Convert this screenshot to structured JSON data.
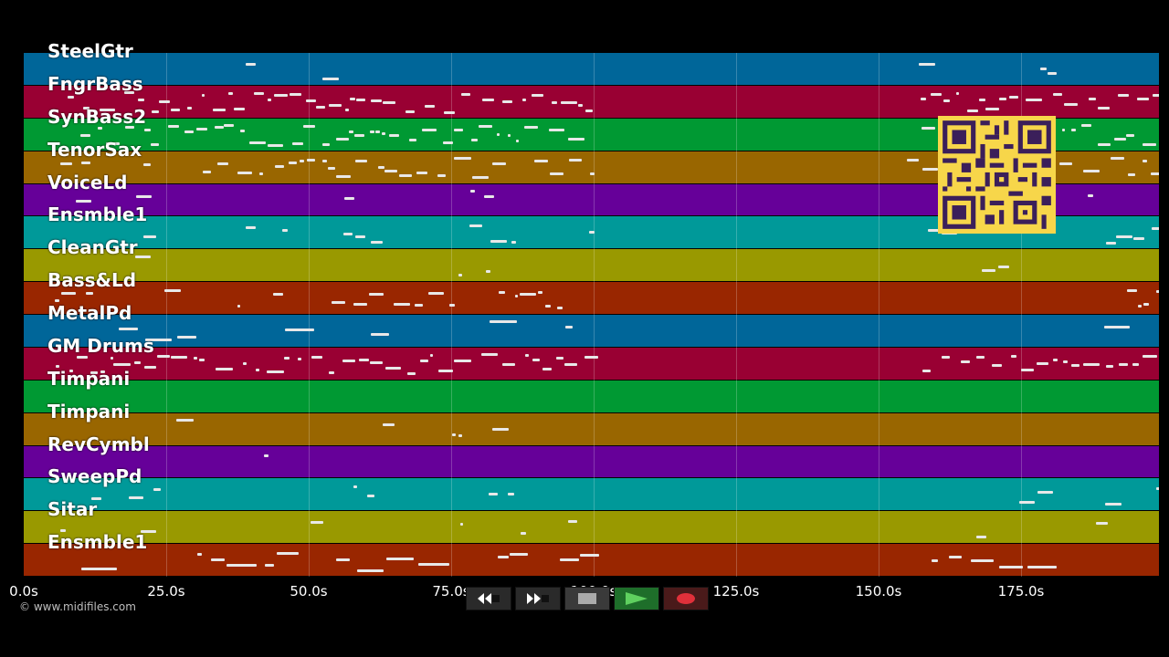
{
  "tracks": [
    {
      "label": "SteelGtr",
      "color": "#006699"
    },
    {
      "label": "FngrBass",
      "color": "#990033"
    },
    {
      "label": "SynBass2",
      "color": "#009933"
    },
    {
      "label": "TenorSax",
      "color": "#996600"
    },
    {
      "label": "VoiceLd",
      "color": "#660099"
    },
    {
      "label": "Ensmble1",
      "color": "#009999"
    },
    {
      "label": "CleanGtr",
      "color": "#999900"
    },
    {
      "label": "Bass&Ld",
      "color": "#992600"
    },
    {
      "label": "MetalPd",
      "color": "#006699"
    },
    {
      "label": "GM Drums",
      "color": "#990033"
    },
    {
      "label": "Timpani",
      "color": "#009933"
    },
    {
      "label": "Timpani",
      "color": "#996600"
    },
    {
      "label": "RevCymbl",
      "color": "#660099"
    },
    {
      "label": "SweepPd",
      "color": "#009999"
    },
    {
      "label": "Sitar",
      "color": "#999900"
    },
    {
      "label": "Ensmble1",
      "color": "#992600"
    }
  ],
  "timeline": {
    "ticks": [
      "0.0s",
      "25.0s",
      "50.0s",
      "75.0s",
      "100.0s",
      "125.0s",
      "150.0s",
      "175.0s"
    ],
    "tick_values": [
      0,
      25,
      50,
      75,
      100,
      125,
      150,
      175
    ],
    "max_seconds": 199.3
  },
  "transport": {
    "rewind_icon": "rewind-icon",
    "fast_forward_icon": "fast-forward-icon",
    "stop_icon": "stop-icon",
    "play_icon": "play-icon",
    "record_icon": "record-icon"
  },
  "copyright": "© www.midifiles.com",
  "qr_code": "qr-code"
}
